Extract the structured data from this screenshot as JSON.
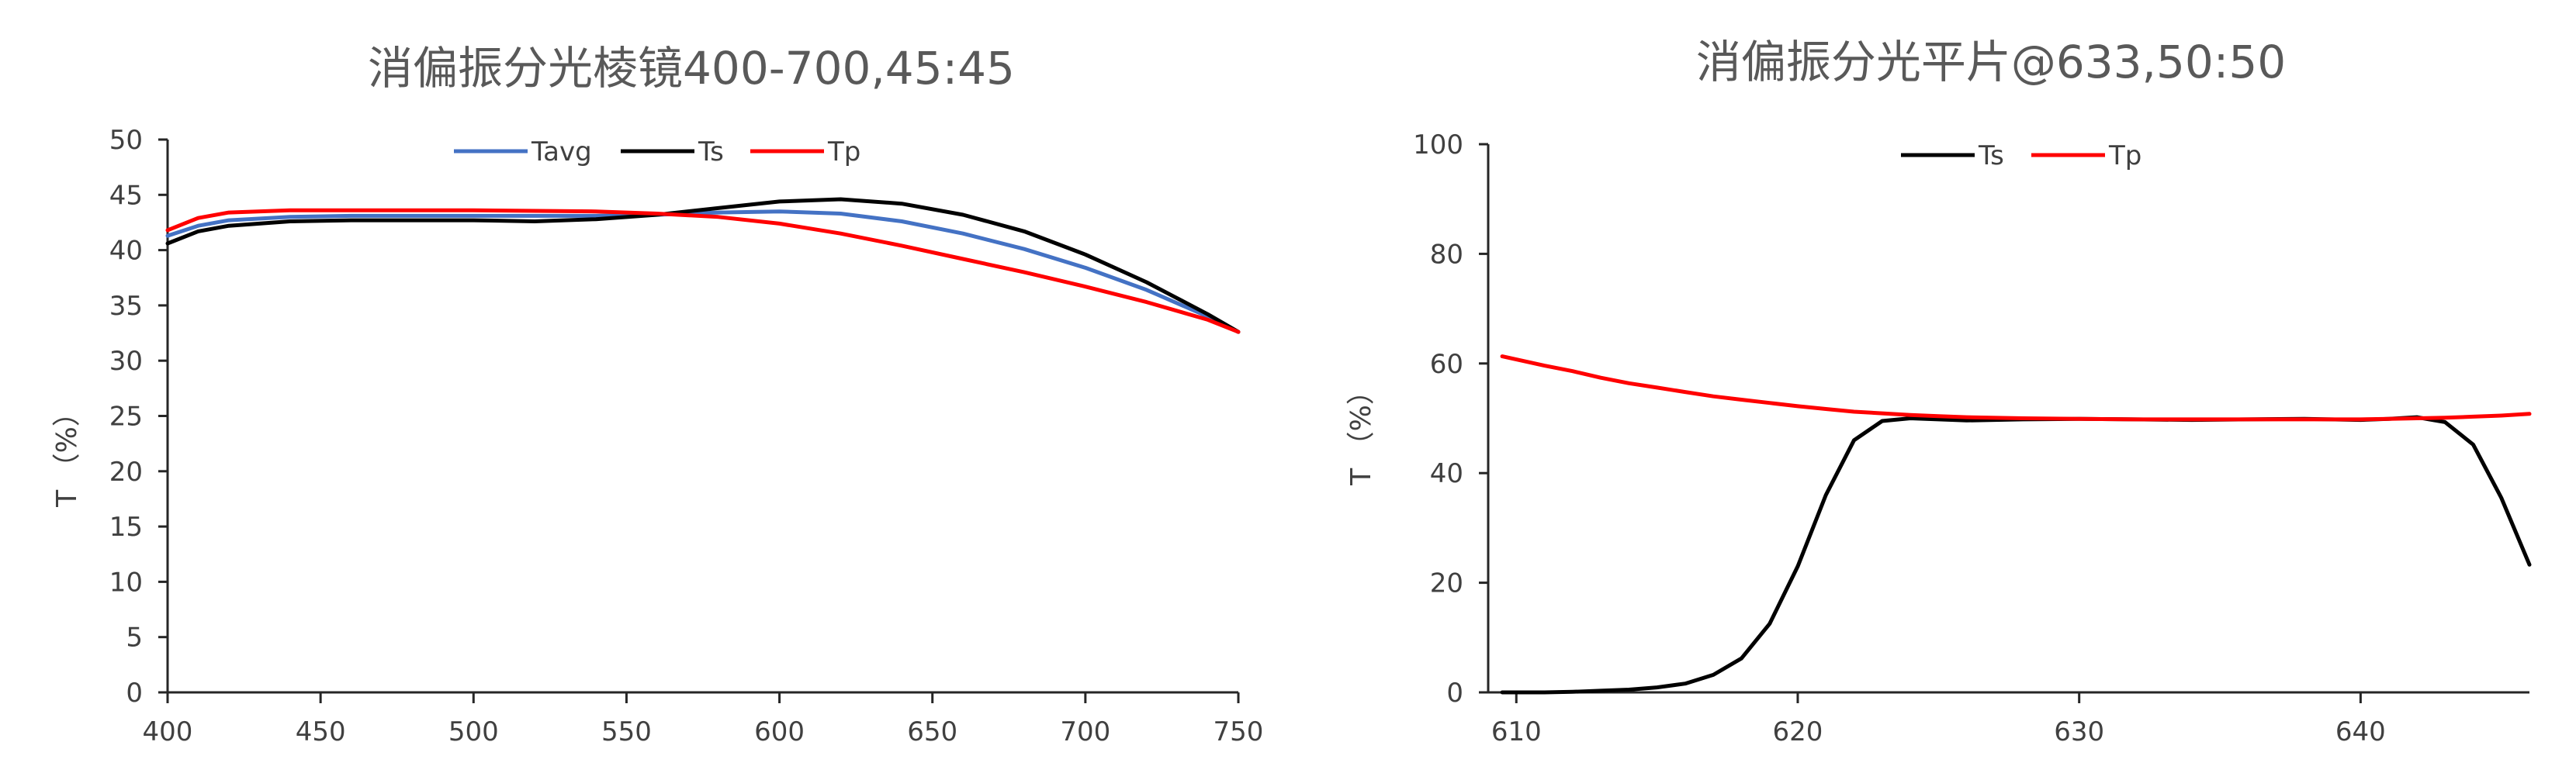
{
  "chart_data": [
    {
      "type": "line",
      "title": "消偏振分光棱镜400-700,45:45",
      "xlabel": "",
      "ylabel": "T （%）",
      "xlim": [
        400,
        750
      ],
      "ylim": [
        0,
        50
      ],
      "xticks": [
        400,
        450,
        500,
        550,
        600,
        650,
        700,
        750
      ],
      "yticks": [
        0,
        5,
        10,
        15,
        20,
        25,
        30,
        35,
        40,
        45,
        50
      ],
      "grid": false,
      "legend_position": "top",
      "series": [
        {
          "name": "Tavg",
          "color": "#4472c4",
          "x": [
            400,
            410,
            420,
            440,
            460,
            500,
            540,
            560,
            580,
            600,
            620,
            640,
            660,
            680,
            700,
            720,
            740,
            750
          ],
          "y": [
            41.3,
            42.2,
            42.7,
            43.0,
            43.1,
            43.1,
            43.1,
            43.2,
            43.4,
            43.5,
            43.3,
            42.6,
            41.5,
            40.1,
            38.4,
            36.4,
            34.0,
            32.6
          ]
        },
        {
          "name": "Ts",
          "color": "#000000",
          "x": [
            400,
            410,
            420,
            440,
            460,
            500,
            520,
            540,
            560,
            580,
            600,
            620,
            640,
            660,
            680,
            700,
            720,
            740,
            750
          ],
          "y": [
            40.6,
            41.7,
            42.2,
            42.6,
            42.7,
            42.7,
            42.6,
            42.8,
            43.2,
            43.8,
            44.4,
            44.6,
            44.2,
            43.2,
            41.7,
            39.6,
            37.1,
            34.2,
            32.6
          ]
        },
        {
          "name": "Tp",
          "color": "#ff0000",
          "x": [
            400,
            410,
            420,
            440,
            460,
            500,
            540,
            560,
            580,
            600,
            620,
            640,
            660,
            680,
            700,
            720,
            740,
            750
          ],
          "y": [
            41.8,
            42.9,
            43.4,
            43.6,
            43.6,
            43.6,
            43.5,
            43.3,
            43.0,
            42.4,
            41.5,
            40.4,
            39.2,
            38.0,
            36.7,
            35.3,
            33.7,
            32.6
          ]
        }
      ]
    },
    {
      "type": "line",
      "title": "消偏振分光平片@633,50:50",
      "xlabel": "",
      "ylabel": "T （%）",
      "xlim": [
        609,
        646
      ],
      "ylim": [
        0,
        100
      ],
      "xticks": [
        610,
        620,
        630,
        640
      ],
      "yticks": [
        0,
        20,
        40,
        60,
        80,
        100
      ],
      "grid": false,
      "legend_position": "top",
      "series": [
        {
          "name": "Ts",
          "color": "#000000",
          "x": [
            609.5,
            611,
            612,
            613,
            614,
            615,
            616,
            617,
            618,
            619,
            620,
            621,
            622,
            623,
            624,
            625,
            626,
            628,
            630,
            632,
            634,
            636,
            638,
            640,
            641,
            642,
            643,
            644,
            645,
            646
          ],
          "y": [
            0,
            0,
            0.1,
            0.3,
            0.5,
            0.9,
            1.6,
            3.2,
            6.2,
            12.5,
            23,
            36,
            46,
            49.5,
            50,
            49.8,
            49.6,
            49.8,
            49.9,
            49.8,
            49.7,
            49.8,
            49.9,
            49.7,
            49.9,
            50.2,
            49.3,
            45.2,
            35.5,
            23.3
          ]
        },
        {
          "name": "Tp",
          "color": "#ff0000",
          "x": [
            609.5,
            611,
            612,
            613,
            614,
            615,
            616,
            617,
            618,
            619,
            620,
            621,
            622,
            623,
            624,
            625,
            626,
            628,
            630,
            632,
            634,
            636,
            638,
            640,
            641,
            642,
            643,
            644,
            645,
            646
          ],
          "y": [
            61.3,
            59.6,
            58.6,
            57.4,
            56.4,
            55.6,
            54.8,
            54.0,
            53.4,
            52.8,
            52.2,
            51.7,
            51.2,
            50.9,
            50.6,
            50.4,
            50.2,
            50.0,
            49.9,
            49.8,
            49.8,
            49.8,
            49.8,
            49.8,
            49.9,
            50.0,
            50.1,
            50.3,
            50.5,
            50.8
          ]
        }
      ]
    }
  ]
}
